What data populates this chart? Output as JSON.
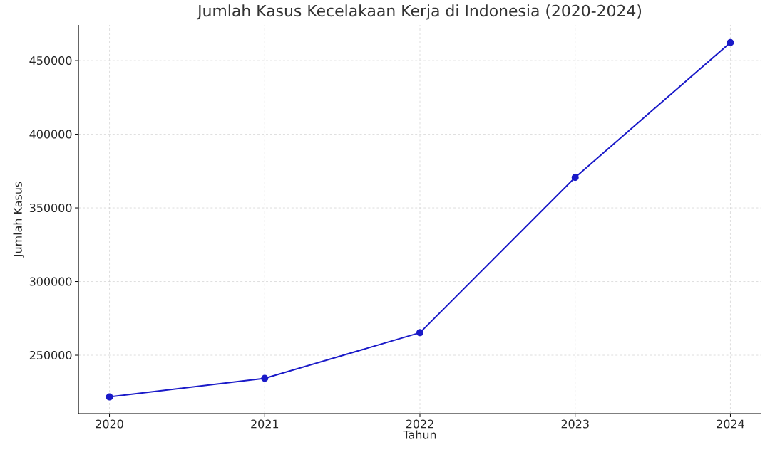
{
  "chart_data": {
    "type": "line",
    "title": "Jumlah Kasus Kecelakaan Kerja di Indonesia (2020-2024)",
    "xlabel": "Tahun",
    "ylabel": "Jumlah Kasus",
    "x": [
      2020,
      2021,
      2022,
      2023,
      2024
    ],
    "series": [
      {
        "color": "#1a1ac8",
        "values": [
          221700,
          234300,
          265300,
          370700,
          462200
        ]
      }
    ],
    "xlim": [
      2019.8,
      2024.2
    ],
    "ylim": [
      210400,
      474200
    ],
    "xticks": [
      2020,
      2021,
      2022,
      2023,
      2024
    ],
    "yticks": [
      250000,
      300000,
      350000,
      400000,
      450000
    ],
    "grid": true,
    "marker": "circle",
    "line_style": "solid"
  }
}
